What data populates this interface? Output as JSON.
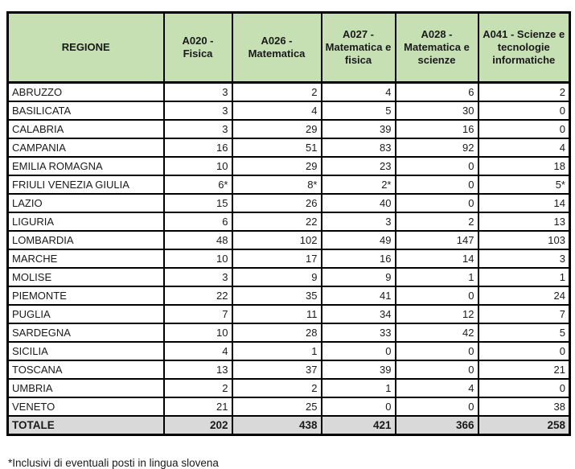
{
  "colors": {
    "header_bg": "#c6e0b4",
    "total_bg": "#d9d9d9",
    "border": "#000000"
  },
  "table": {
    "header": {
      "region_label": "REGIONE",
      "cols": [
        "A020 - Fisica",
        "A026 - Matematica",
        "A027 - Matematica e fisica",
        "A028 - Matematica e scienze",
        "A041 - Scienze e tecnologie informatiche"
      ]
    },
    "rows": [
      {
        "region": "ABRUZZO",
        "values": [
          "3",
          "2",
          "4",
          "6",
          "2"
        ]
      },
      {
        "region": "BASILICATA",
        "values": [
          "3",
          "4",
          "5",
          "30",
          "0"
        ]
      },
      {
        "region": "CALABRIA",
        "values": [
          "3",
          "29",
          "39",
          "16",
          "0"
        ]
      },
      {
        "region": "CAMPANIA",
        "values": [
          "16",
          "51",
          "83",
          "92",
          "4"
        ]
      },
      {
        "region": "EMILIA ROMAGNA",
        "values": [
          "10",
          "29",
          "23",
          "0",
          "18"
        ]
      },
      {
        "region": "FRIULI VENEZIA GIULIA",
        "values": [
          "6*",
          "8*",
          "2*",
          "0",
          "5*"
        ]
      },
      {
        "region": "LAZIO",
        "values": [
          "15",
          "26",
          "40",
          "0",
          "14"
        ]
      },
      {
        "region": "LIGURIA",
        "values": [
          "6",
          "22",
          "3",
          "2",
          "13"
        ]
      },
      {
        "region": "LOMBARDIA",
        "values": [
          "48",
          "102",
          "49",
          "147",
          "103"
        ]
      },
      {
        "region": "MARCHE",
        "values": [
          "10",
          "17",
          "16",
          "14",
          "3"
        ]
      },
      {
        "region": "MOLISE",
        "values": [
          "3",
          "9",
          "9",
          "1",
          "1"
        ]
      },
      {
        "region": "PIEMONTE",
        "values": [
          "22",
          "35",
          "41",
          "0",
          "24"
        ]
      },
      {
        "region": "PUGLIA",
        "values": [
          "7",
          "11",
          "34",
          "12",
          "7"
        ]
      },
      {
        "region": "SARDEGNA",
        "values": [
          "10",
          "28",
          "33",
          "42",
          "5"
        ]
      },
      {
        "region": "SICILIA",
        "values": [
          "4",
          "1",
          "0",
          "0",
          "0"
        ]
      },
      {
        "region": "TOSCANA",
        "values": [
          "13",
          "37",
          "39",
          "0",
          "21"
        ]
      },
      {
        "region": "UMBRIA",
        "values": [
          "2",
          "2",
          "1",
          "4",
          "0"
        ]
      },
      {
        "region": "VENETO",
        "values": [
          "21",
          "25",
          "0",
          "0",
          "38"
        ]
      }
    ],
    "total": {
      "label": "TOTALE",
      "values": [
        "202",
        "438",
        "421",
        "366",
        "258"
      ]
    }
  },
  "footnote": "*Inclusivi di eventuali posti in lingua slovena"
}
